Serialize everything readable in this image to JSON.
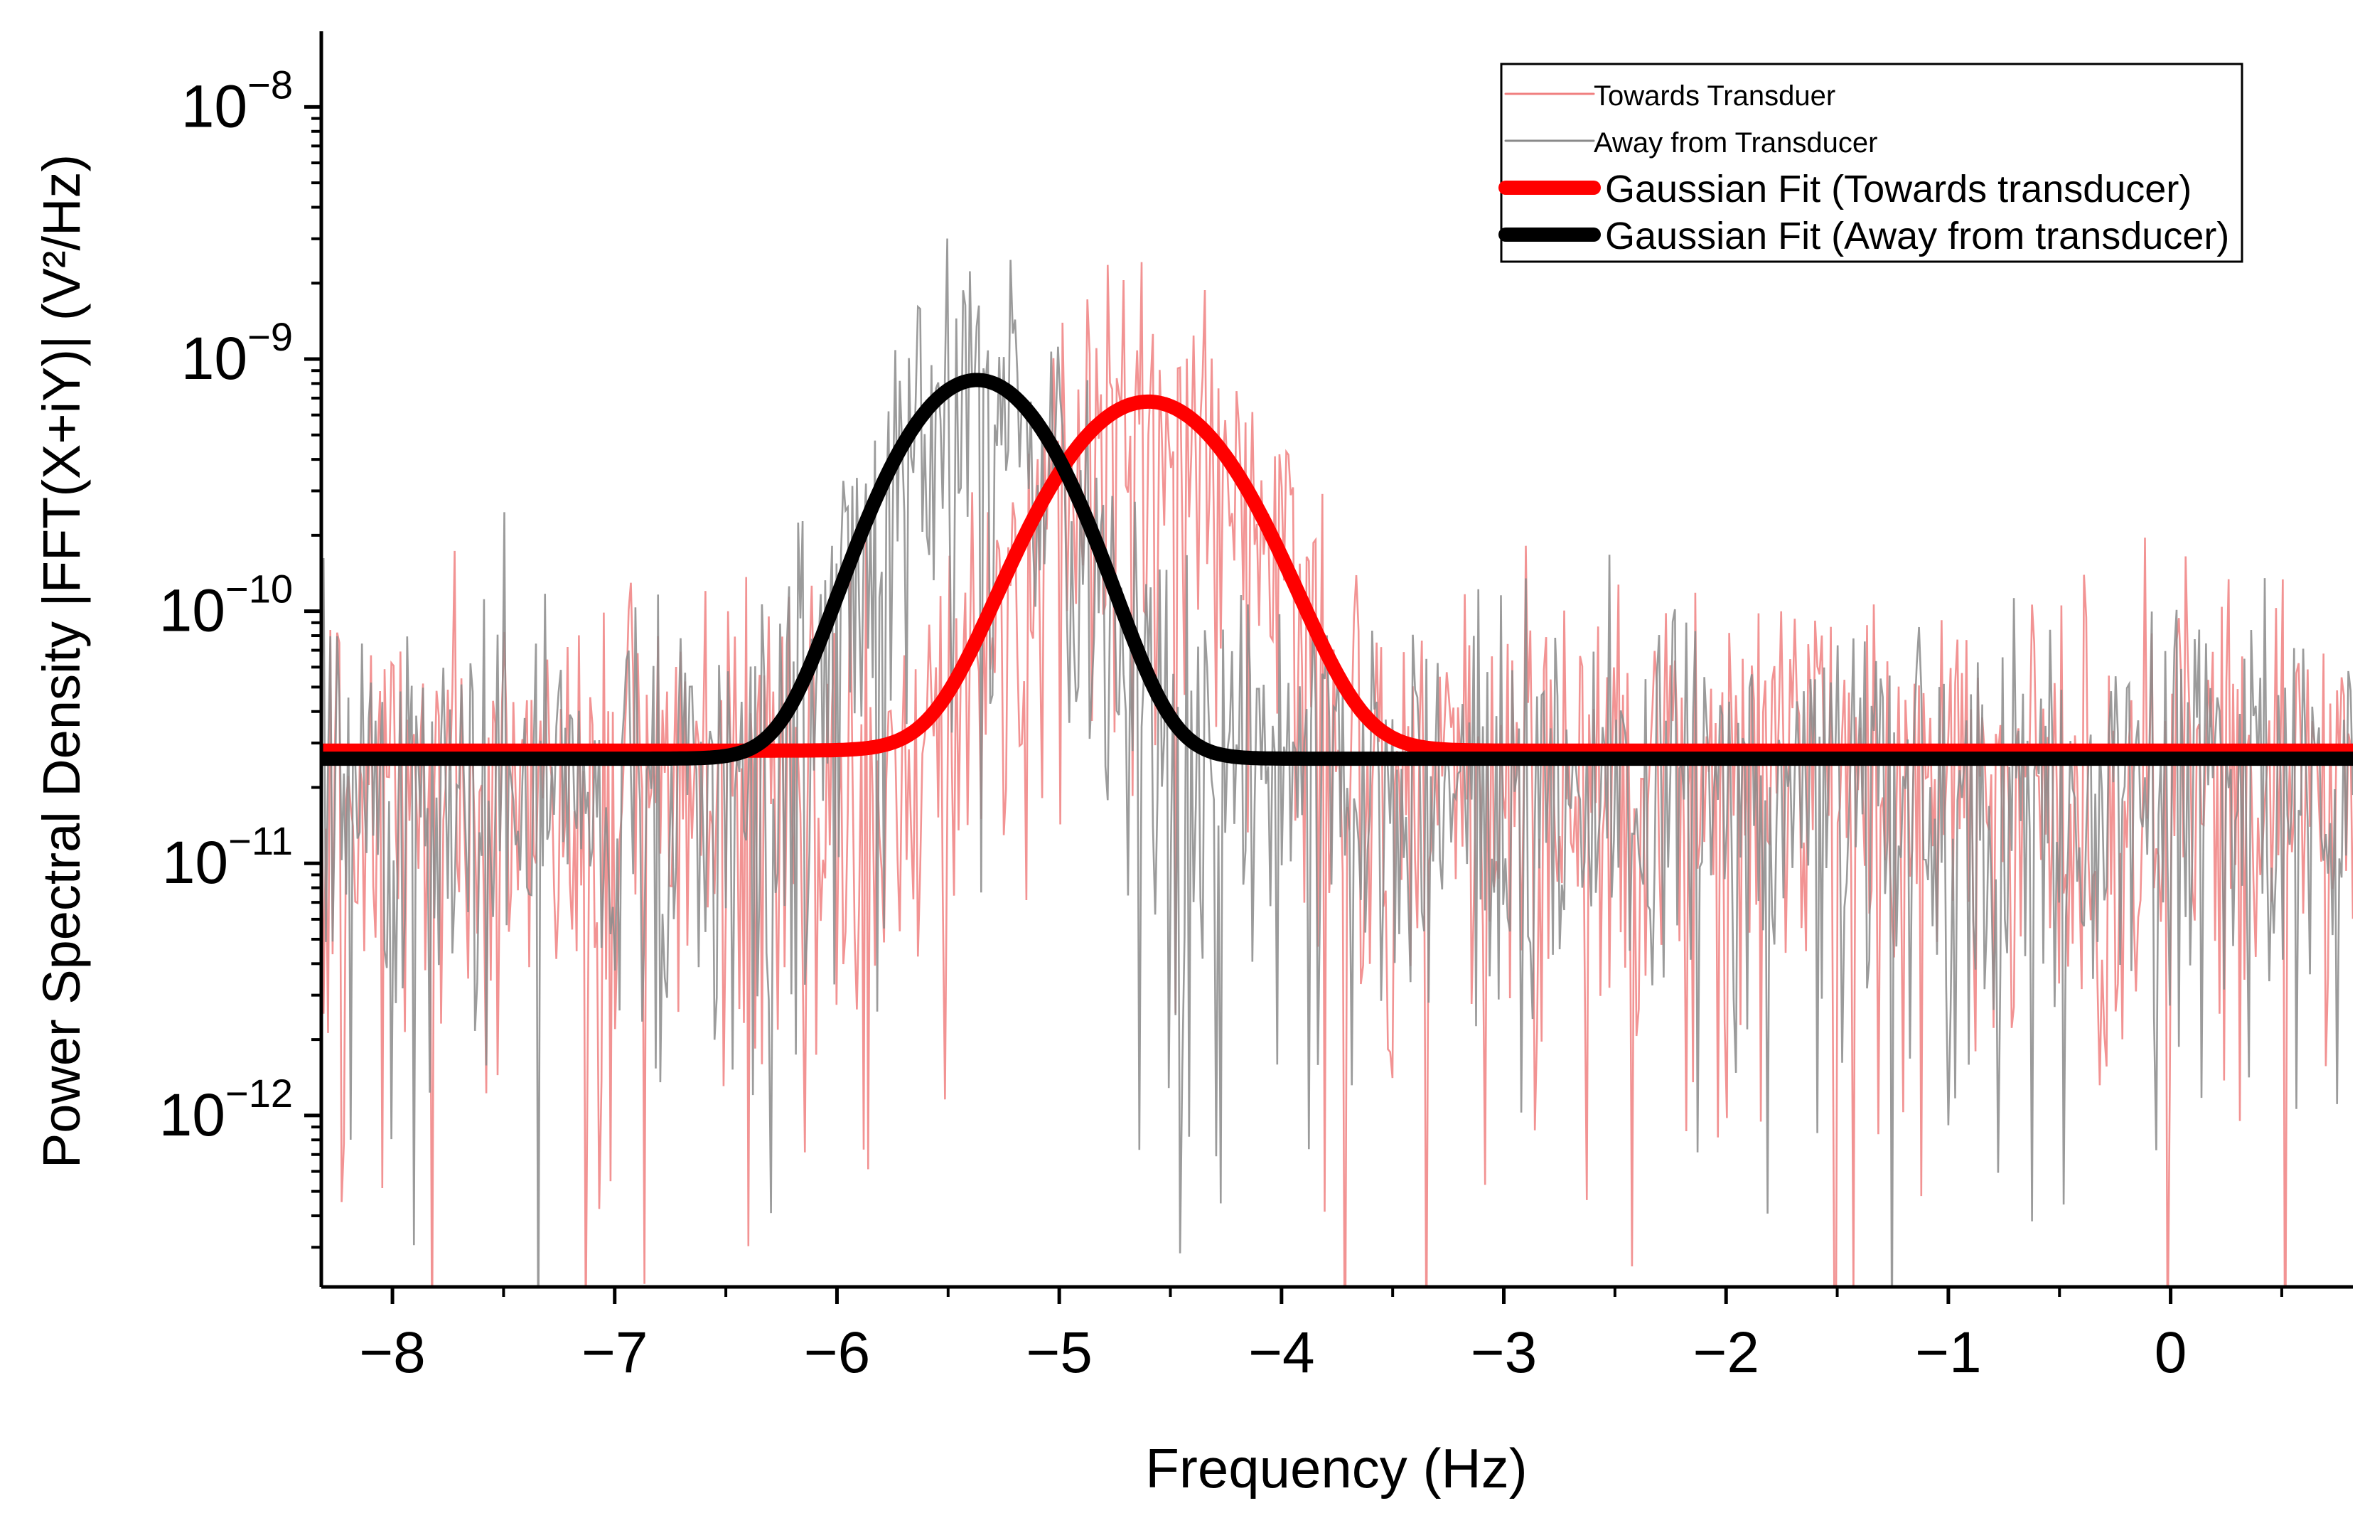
{
  "chart_data": {
    "type": "line",
    "title": "",
    "xlabel": "Frequency (Hz)",
    "ylabel": "Power Spectral Density |FFT(X+iY)| (V²/Hz)",
    "xlim": [
      -8.32,
      0.82
    ],
    "ylim_log10": [
      -12.68,
      -7.7
    ],
    "yscale": "log",
    "xticks": [
      -8,
      -7,
      -6,
      -5,
      -4,
      -3,
      -2,
      -1,
      0
    ],
    "xtick_labels": [
      "−8",
      "−7",
      "−6",
      "−5",
      "−4",
      "−3",
      "−2",
      "−1",
      "0"
    ],
    "yticks_log10": [
      -12,
      -11,
      -10,
      -9,
      -8
    ],
    "ytick_labels": [
      {
        "base": "10",
        "exp": "−12"
      },
      {
        "base": "10",
        "exp": "−11"
      },
      {
        "base": "10",
        "exp": "−10"
      },
      {
        "base": "10",
        "exp": "−9"
      },
      {
        "base": "10",
        "exp": "−8"
      }
    ],
    "legend_position": "top-right",
    "series": [
      {
        "name": "Towards Transduer",
        "kind": "noise",
        "color": "#f08080",
        "center": -4.6,
        "sigma": 0.34,
        "peak": 6.5e-10,
        "baseline": 2.8e-11,
        "n_points": 900,
        "seed": 7
      },
      {
        "name": "Away from Transducer",
        "kind": "noise",
        "color": "#8a8a8a",
        "center": -5.37,
        "sigma": 0.3,
        "peak": 8e-10,
        "baseline": 2.6e-11,
        "n_points": 900,
        "seed": 19
      },
      {
        "name": "Gaussian Fit (Towards transducer)",
        "kind": "fit",
        "color": "#ff0000",
        "center": -4.6,
        "sigma": 0.34,
        "peak": 6.5e-10,
        "baseline": 2.8e-11
      },
      {
        "name": "Gaussian Fit (Away from transducer)",
        "kind": "fit",
        "color": "#000000",
        "center": -5.37,
        "sigma": 0.3,
        "peak": 8e-10,
        "baseline": 2.6e-11
      }
    ]
  }
}
